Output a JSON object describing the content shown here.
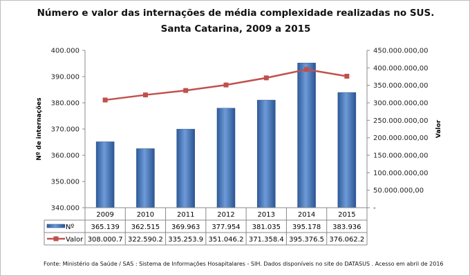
{
  "chart_data": {
    "type": "bar+line",
    "title": "Número e valor das internações de média complexidade realizadas no SUS.",
    "subtitle": "Santa Catarina, 2009 a 2015",
    "categories": [
      "2009",
      "2010",
      "2011",
      "2012",
      "2013",
      "2014",
      "2015"
    ],
    "series": [
      {
        "name": "Nº",
        "type": "bar",
        "axis": "left",
        "color": "#4f81bd",
        "values": [
          365139,
          362515,
          369963,
          377954,
          381035,
          395178,
          383936
        ],
        "table_labels": [
          "365.139",
          "362.515",
          "369.963",
          "377.954",
          "381.035",
          "395.178",
          "383.936"
        ]
      },
      {
        "name": "Valor",
        "type": "line",
        "axis": "right",
        "color": "#c0504d",
        "values": [
          308000700,
          322590200,
          335253900,
          351046200,
          371358400,
          395376500,
          376062200
        ],
        "table_labels": [
          "308.000.7",
          "322.590.2",
          "335.253.9",
          "351.046.2",
          "371.358.4",
          "395.376.5",
          "376.062.2"
        ]
      }
    ],
    "ylabel": "Nº de internações",
    "y2label": "Valor",
    "ylim": [
      340000,
      400000
    ],
    "y2lim": [
      0,
      450000000
    ],
    "yticks": [
      "340.000",
      "350.000",
      "360.000",
      "370.000",
      "380.000",
      "390.000",
      "400.000"
    ],
    "y2ticks": [
      "-",
      "50.000.000,00",
      "100.000.000,00",
      "150.000.000,00",
      "200.000.000,00",
      "250.000.000,00",
      "300.000.000,00",
      "350.000.000,00",
      "400.000.000,00",
      "450.000.000,00"
    ],
    "grid": false,
    "legend": "data-table"
  },
  "footer": "Fonte:  Ministério da Saúde / SAS : Sistema de Informações Hosapitalares - SIH. Dados disponíveis no site do DATASUS . Acesso em abril de 2016"
}
